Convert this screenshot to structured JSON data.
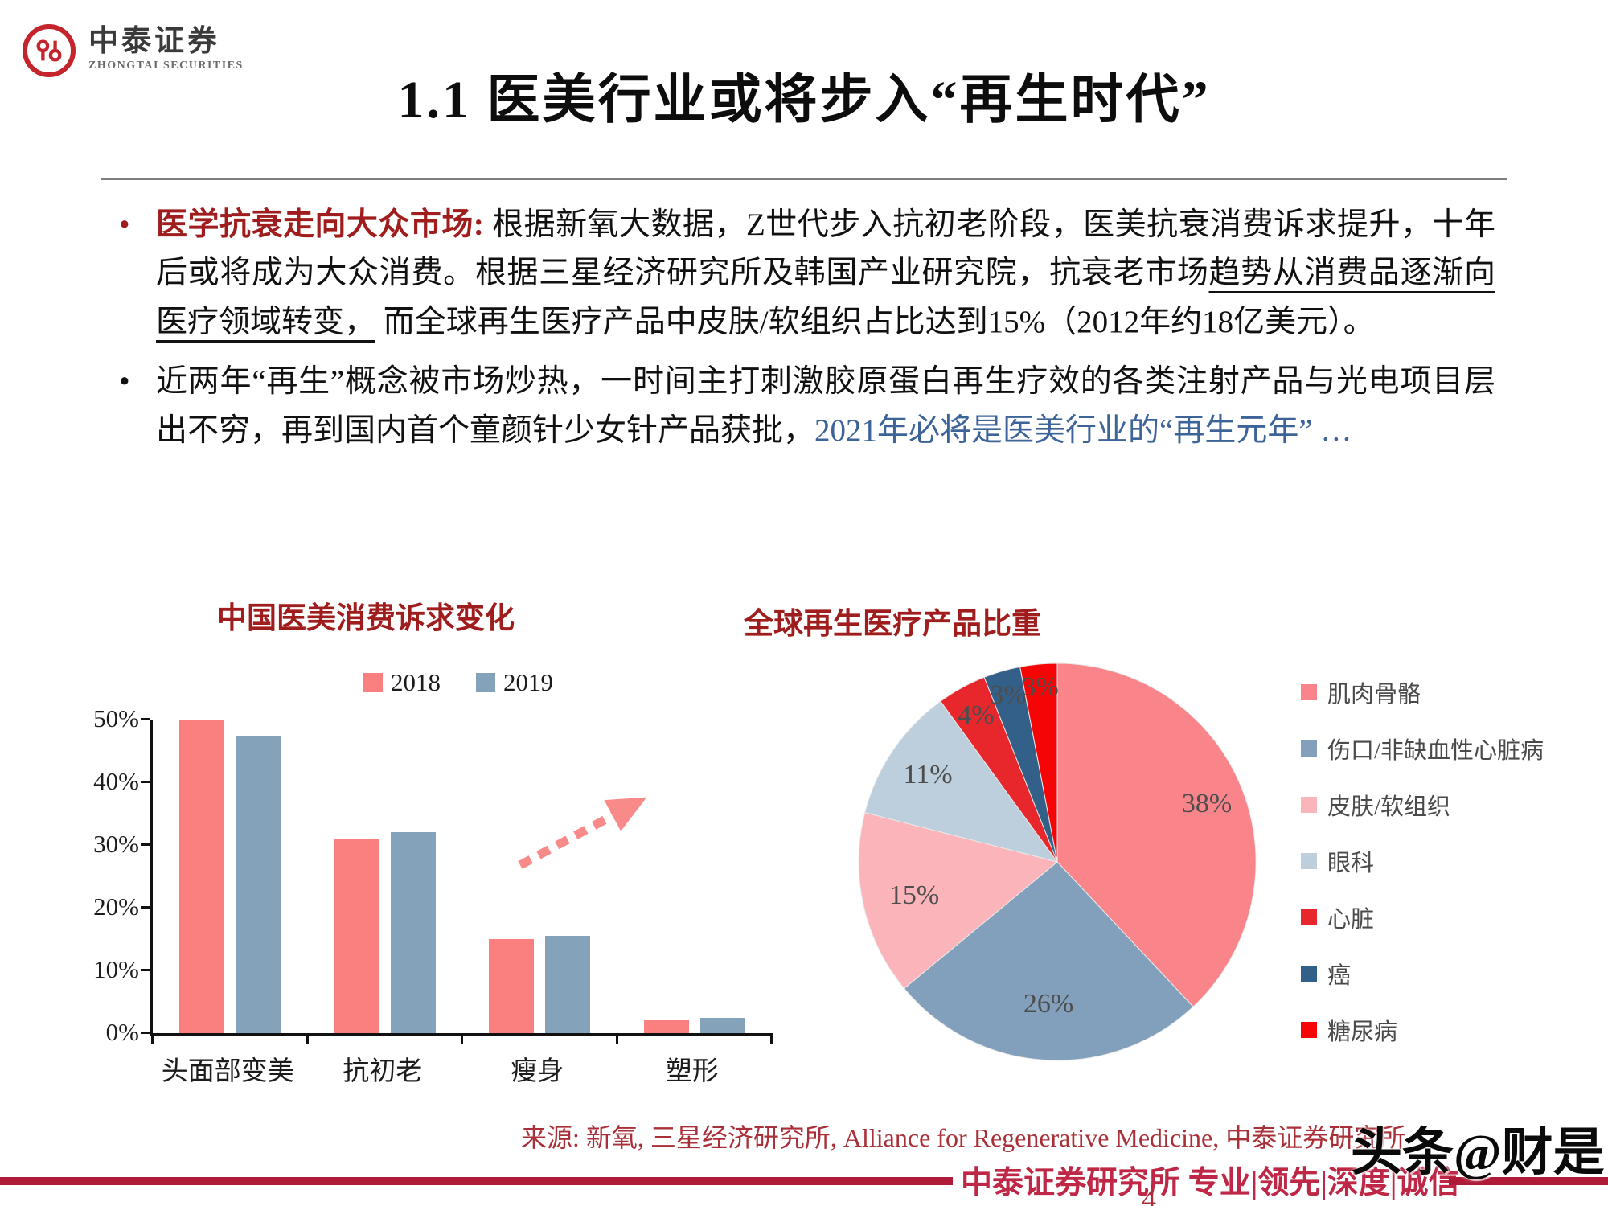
{
  "logo": {
    "name_cn": "中泰证券",
    "name_en": "ZHONGTAI SECURITIES"
  },
  "slide": {
    "title": "1.1 医美行业或将步入“再生时代”",
    "bullet_marker": "•",
    "page_number": "4",
    "watermark": "头条@财是",
    "source_note": "来源: 新氧, 三星经济研究所, Alliance for Regenerative Medicine, 中泰证券研究所",
    "footer_slogan": "中泰证券研究所 专业|领先|深度|诚信"
  },
  "bullets": [
    {
      "lead": "医学抗衰走向大众市场: ",
      "text_pre": "根据新氧大数据，Z世代步入抗初老阶段，医美抗衰消费诉求提升，十年后或将成为大众消费。根据三星经济研究所及韩国产业研究院，抗衰老市场",
      "underline": "趋势从消费品逐渐向医疗领域转变，",
      "text_post": " 而全球再生医疗产品中皮肤/软组织占比达到15%（2012年约18亿美元）。"
    },
    {
      "text": "近两年“再生”概念被市场炒热，一时间主打刺激胶原蛋白再生疗效的各类注射产品与光电项目层出不穷，再到国内首个童颜针少女针产品获批，",
      "highlight": "2021年必将是医美行业的“再生元年” …"
    }
  ],
  "chart_data": [
    {
      "type": "bar",
      "title": "中国医美消费诉求变化",
      "categories": [
        "头面部变美",
        "抗初老",
        "瘦身",
        "塑形"
      ],
      "series": [
        {
          "name": "2018",
          "color": "#FA8080",
          "values": [
            50,
            31,
            15,
            2
          ]
        },
        {
          "name": "2019",
          "color": "#84A3BB",
          "values": [
            47.5,
            32,
            15.5,
            2.5
          ]
        }
      ],
      "ylabel_ticks": [
        "0%",
        "10%",
        "20%",
        "30%",
        "40%",
        "50%"
      ],
      "ylim": [
        0,
        50
      ],
      "grid": false,
      "legend_position": "top-center",
      "annotation": {
        "shape": "dashed-arrow-up-right",
        "color": "#F98A8A",
        "near": "抗初老"
      }
    },
    {
      "type": "pie",
      "title": "全球再生医疗产品比重",
      "start_angle": "12-o-clock-clockwise",
      "legend_position": "right",
      "slices": [
        {
          "label": "肌肉骨骼",
          "value": 38,
          "color": "#F9858B"
        },
        {
          "label": "伤口/非缺血性心脏病",
          "value": 26,
          "color": "#82A0BB"
        },
        {
          "label": "皮肤/软组织",
          "value": 15,
          "color": "#FBB5BA"
        },
        {
          "label": "眼科",
          "value": 11,
          "color": "#BDCFDC"
        },
        {
          "label": "心脏",
          "value": 4,
          "color": "#E8272D"
        },
        {
          "label": "癌",
          "value": 3,
          "color": "#336088"
        },
        {
          "label": "糖尿病",
          "value": 3,
          "color": "#F50505"
        }
      ]
    }
  ],
  "colors": {
    "accent_dark_red": "#A01D1D",
    "highlight_blue": "#3D6499",
    "source_red": "#A93038",
    "footer_text_red": "#BE2745",
    "footer_line_red": "#AE1A38",
    "logo_red": "#C4242C"
  }
}
